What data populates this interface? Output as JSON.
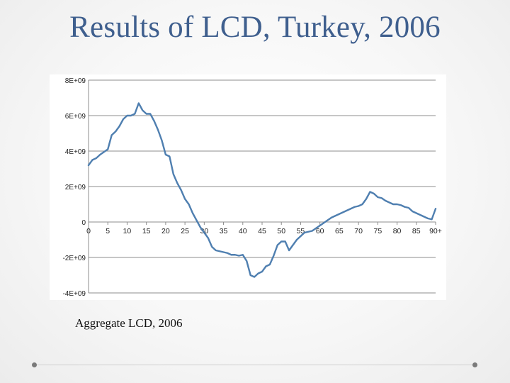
{
  "slide": {
    "title": "Results of LCD, Turkey, 2006",
    "caption": "Aggregate LCD, 2006"
  },
  "colors": {
    "title": "#3f5f8e",
    "line": "#4f7fb0",
    "grid": "#8c8c8c"
  },
  "chart_data": {
    "type": "line",
    "title": "",
    "xlabel": "",
    "ylabel": "",
    "grid": true,
    "legend": "none",
    "xlim": [
      0,
      90
    ],
    "ylim": [
      -4000000000.0,
      8000000000.0
    ],
    "x_ticks": [
      0,
      5,
      10,
      15,
      20,
      25,
      30,
      35,
      40,
      45,
      50,
      55,
      60,
      65,
      70,
      75,
      80,
      85,
      90
    ],
    "x_tick_labels": [
      "0",
      "5",
      "10",
      "15",
      "20",
      "25",
      "30",
      "35",
      "40",
      "45",
      "50",
      "55",
      "60",
      "65",
      "70",
      "75",
      "80",
      "85",
      "90+"
    ],
    "y_ticks": [
      -4000000000.0,
      -2000000000.0,
      0,
      2000000000.0,
      4000000000.0,
      6000000000.0,
      8000000000.0
    ],
    "y_tick_labels": [
      "-4E+09",
      "-2E+09",
      "0",
      "2E+09",
      "4E+09",
      "6E+09",
      "8E+09"
    ],
    "series": [
      {
        "x": [
          0,
          1,
          2,
          3,
          4,
          5,
          6,
          7,
          8,
          9,
          10,
          11,
          12,
          13,
          14,
          15,
          16,
          17,
          18,
          19,
          20,
          21,
          22,
          23,
          24,
          25,
          26,
          27,
          28,
          29,
          30,
          31,
          32,
          33,
          34,
          35,
          36,
          37,
          38,
          39,
          40,
          41,
          42,
          43,
          44,
          45,
          46,
          47,
          48,
          49,
          50,
          51,
          52,
          53,
          54,
          55,
          56,
          57,
          58,
          59,
          60,
          61,
          62,
          63,
          64,
          65,
          66,
          67,
          68,
          69,
          70,
          71,
          72,
          73,
          74,
          75,
          76,
          77,
          78,
          79,
          80,
          81,
          82,
          83,
          84,
          85,
          86,
          87,
          88,
          89,
          90
        ],
        "y": [
          3200000000.0,
          3500000000.0,
          3600000000.0,
          3800000000.0,
          3950000000.0,
          4100000000.0,
          4900000000.0,
          5100000000.0,
          5400000000.0,
          5800000000.0,
          6000000000.0,
          6000000000.0,
          6100000000.0,
          6700000000.0,
          6300000000.0,
          6100000000.0,
          6100000000.0,
          5700000000.0,
          5200000000.0,
          4600000000.0,
          3800000000.0,
          3700000000.0,
          2700000000.0,
          2200000000.0,
          1800000000.0,
          1300000000.0,
          1000000000.0,
          500000000.0,
          100000000.0,
          -300000000.0,
          -600000000.0,
          -900000000.0,
          -1400000000.0,
          -1600000000.0,
          -1650000000.0,
          -1700000000.0,
          -1750000000.0,
          -1850000000.0,
          -1850000000.0,
          -1900000000.0,
          -1850000000.0,
          -2200000000.0,
          -3000000000.0,
          -3100000000.0,
          -2900000000.0,
          -2800000000.0,
          -2500000000.0,
          -2400000000.0,
          -1900000000.0,
          -1300000000.0,
          -1100000000.0,
          -1100000000.0,
          -1600000000.0,
          -1300000000.0,
          -1000000000.0,
          -800000000.0,
          -600000000.0,
          -550000000.0,
          -500000000.0,
          -350000000.0,
          -200000000.0,
          -50000000.0,
          100000000.0,
          250000000.0,
          350000000.0,
          450000000.0,
          550000000.0,
          650000000.0,
          750000000.0,
          850000000.0,
          900000000.0,
          1000000000.0,
          1300000000.0,
          1700000000.0,
          1600000000.0,
          1400000000.0,
          1350000000.0,
          1200000000.0,
          1100000000.0,
          1000000000.0,
          1000000000.0,
          950000000.0,
          850000000.0,
          800000000.0,
          600000000.0,
          500000000.0,
          400000000.0,
          300000000.0,
          200000000.0,
          150000000.0,
          750000000.0
        ]
      }
    ]
  }
}
